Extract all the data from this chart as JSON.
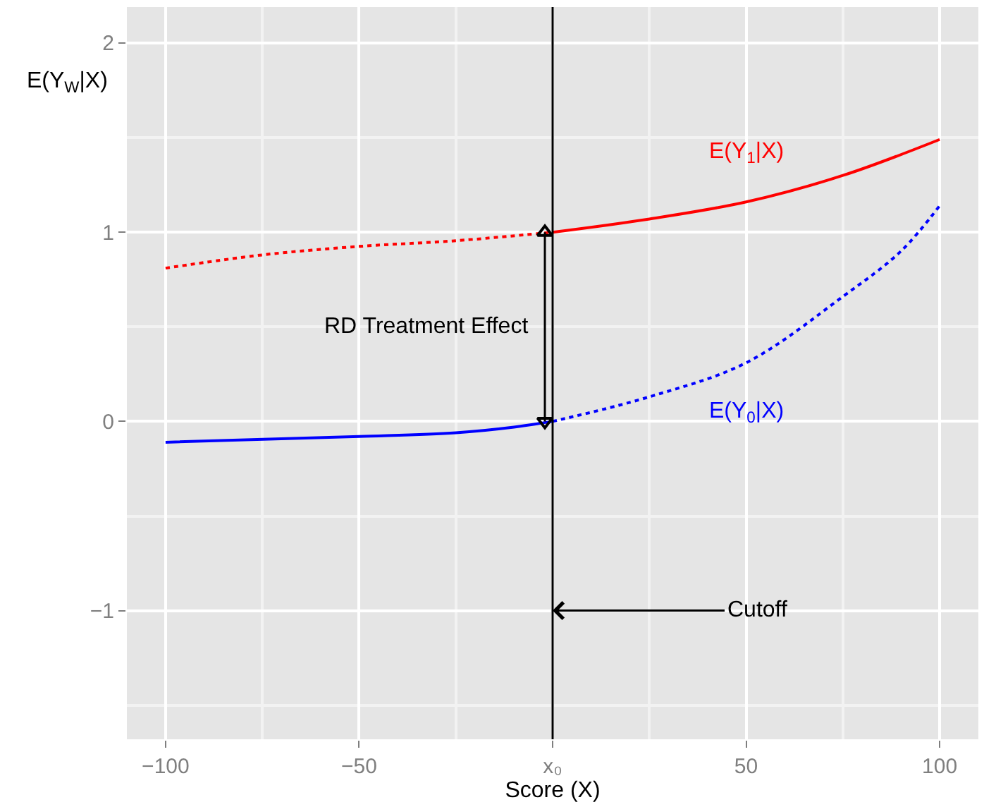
{
  "chart_data": {
    "type": "line",
    "xlabel": "Score (X)",
    "ylabel": "E(Y$_{W}$|X)",
    "xlim": [
      -110,
      110
    ],
    "ylim": [
      -1.68,
      2.19
    ],
    "xticks": [
      -100,
      -50,
      {
        "value": 0,
        "label": "x₀"
      },
      50,
      100
    ],
    "yticks": [
      -1,
      0,
      1,
      2
    ],
    "grid": true,
    "legend": false,
    "series": [
      {
        "color": "#ff0000",
        "line_style": "dotted",
        "x": [
          -100,
          -75,
          -50,
          -25,
          0
        ],
        "values": [
          0.81,
          0.88,
          0.925,
          0.955,
          1.0
        ]
      },
      {
        "name": "E(Y$_{1}$|X)",
        "color": "#ff0000",
        "line_style": "solid",
        "x": [
          0,
          25,
          50,
          75,
          100
        ],
        "values": [
          1.0,
          1.07,
          1.16,
          1.3,
          1.49
        ]
      },
      {
        "color": "#0000ff",
        "line_style": "solid",
        "x": [
          -100,
          -50,
          -25,
          -10,
          0
        ],
        "values": [
          -0.11,
          -0.08,
          -0.06,
          -0.03,
          0.0
        ]
      },
      {
        "name": "E(Y$_{0}$|X)",
        "color": "#0000ff",
        "line_style": "dotted",
        "x": [
          0,
          25,
          50,
          75,
          90,
          100
        ],
        "values": [
          0.0,
          0.13,
          0.31,
          0.66,
          0.9,
          1.14
        ]
      },
      {
        "type": "line",
        "color": "#000000",
        "line_style": "solid",
        "marker": "triangle",
        "x": [
          -2,
          -2
        ],
        "values": [
          0,
          1
        ]
      }
    ],
    "ref_lines": [
      {
        "axis": "x",
        "value": 0,
        "color": "#000000"
      }
    ],
    "annotations": [
      "RD Treatment Effect",
      {
        "text": "Cutoff",
        "x": 0,
        "y": -1
      }
    ]
  }
}
